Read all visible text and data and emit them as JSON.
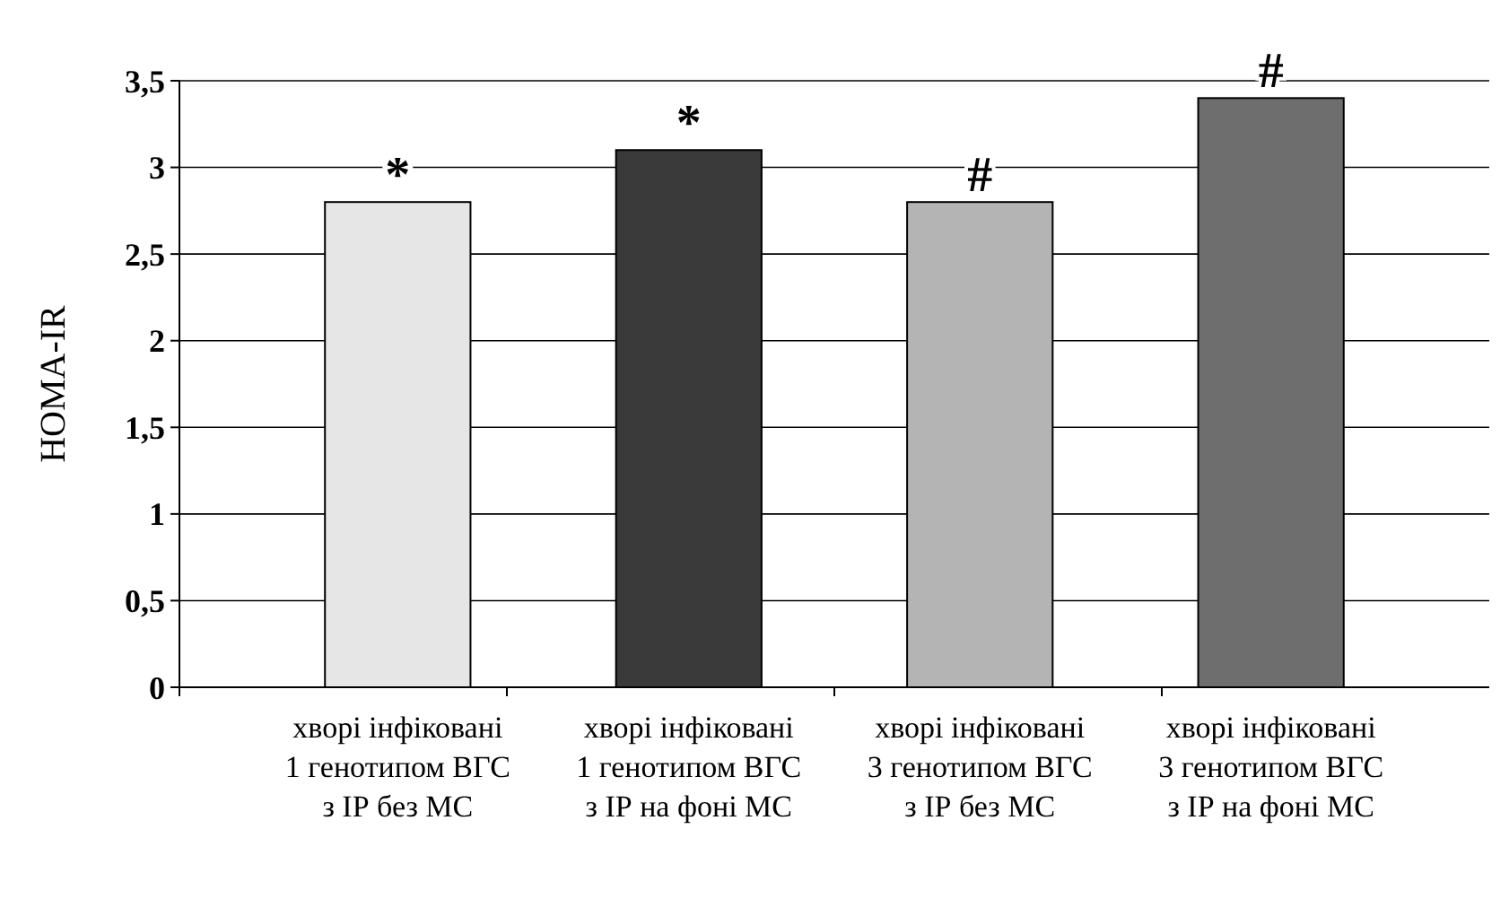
{
  "chart_data": {
    "type": "bar",
    "ylabel": "HOMA-IR",
    "categories": [
      "хворі інфіковані 1 генотипом ВГС з ІР без МС",
      "хворі інфіковані 1 генотипом ВГС з ІР на фоні МС",
      "хворі інфіковані 3 генотипом ВГС з ІР без МС",
      "хворі інфіковані 3 генотипом ВГС з ІР на фоні МС"
    ],
    "values": [
      2.8,
      3.1,
      2.8,
      3.4
    ],
    "colors": [
      "#e6e6e6",
      "#3a3a3a",
      "#b4b4b4",
      "#6e6e6e"
    ],
    "ylim": [
      0,
      3.5
    ],
    "yticks": [
      0,
      {
        "value": 0.5,
        "label": "0,5"
      },
      1,
      {
        "value": 1.5,
        "label": "1,5"
      },
      2,
      {
        "value": 2.5,
        "label": "2,5"
      },
      3,
      {
        "value": 3.5,
        "label": "3,5"
      }
    ],
    "grid": "y",
    "annotations": [
      {
        "text": "*",
        "x": "хворі інфіковані 1 генотипом ВГС з ІР без МС",
        "y": 2.8
      },
      {
        "text": "*",
        "x": "хворі інфіковані 1 генотипом ВГС з ІР на фоні МС",
        "y": 3.1
      },
      {
        "text": "#",
        "x": "хворі інфіковані 3 генотипом ВГС з ІР без МС",
        "y": 2.8
      },
      {
        "text": "#",
        "x": "хворі інфіковані 3 генотипом ВГС з ІР на фоні МС",
        "y": 3.4
      }
    ]
  }
}
